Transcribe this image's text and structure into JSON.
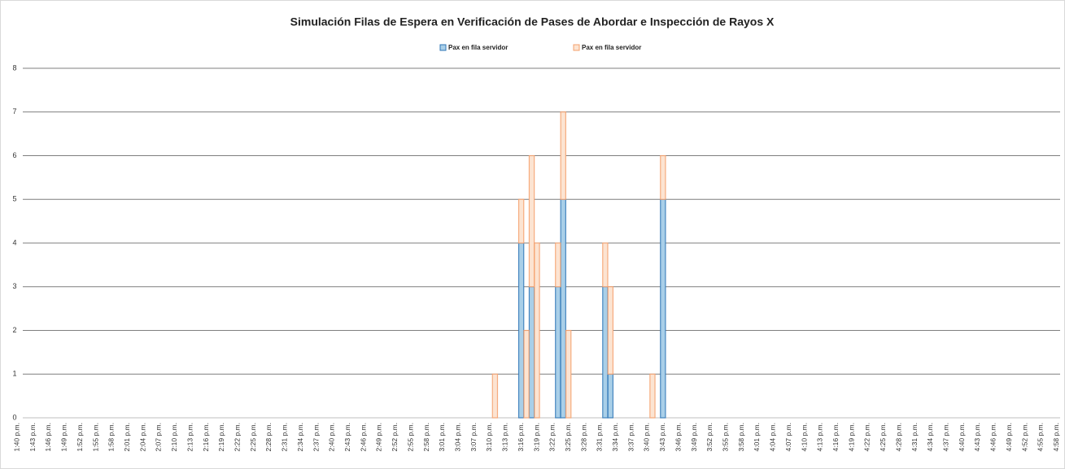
{
  "chart_data": {
    "type": "stacked_bar",
    "title": "Simulación Filas de Espera en Verificación de Pases de Abordar e Inspección de Rayos X",
    "categories": [
      "1:40 p.m.",
      null,
      null,
      "1:43 p.m.",
      null,
      null,
      "1:46 p.m.",
      null,
      null,
      "1:49 p.m.",
      null,
      null,
      "1:52 p.m.",
      null,
      null,
      "1:55 p.m.",
      null,
      null,
      "1:58 p.m.",
      null,
      null,
      "2:01 p.m.",
      null,
      null,
      "2:04 p.m.",
      null,
      null,
      "2:07 p.m.",
      null,
      null,
      "2:10 p.m.",
      null,
      null,
      "2:13 p.m.",
      null,
      null,
      "2:16 p.m.",
      null,
      null,
      "2:19 p.m.",
      null,
      null,
      "2:22 p.m.",
      null,
      null,
      "2:25 p.m.",
      null,
      null,
      "2:28 p.m.",
      null,
      null,
      "2:31 p.m.",
      null,
      null,
      "2:34 p.m.",
      null,
      null,
      "2:37 p.m.",
      null,
      null,
      "2:40 p.m.",
      null,
      null,
      "2:43 p.m.",
      null,
      null,
      "2:46 p.m.",
      null,
      null,
      "2:49 p.m.",
      null,
      null,
      "2:52 p.m.",
      null,
      null,
      "2:55 p.m.",
      null,
      null,
      "2:58 p.m.",
      null,
      null,
      "3:01 p.m.",
      null,
      null,
      "3:04 p.m.",
      null,
      null,
      "3:07 p.m.",
      null,
      null,
      "3:10 p.m.",
      null,
      null,
      "3:13 p.m.",
      null,
      null,
      "3:16 p.m.",
      null,
      null,
      "3:19 p.m.",
      null,
      null,
      "3:22 p.m.",
      null,
      null,
      "3:25 p.m.",
      null,
      null,
      "3:28 p.m.",
      null,
      null,
      "3:31 p.m.",
      null,
      null,
      "3:34 p.m.",
      null,
      null,
      "3:37 p.m.",
      null,
      null,
      "3:40 p.m.",
      null,
      null,
      "3:43 p.m.",
      null,
      null,
      "3:46 p.m.",
      null,
      null,
      "3:49 p.m.",
      null,
      null,
      "3:52 p.m.",
      null,
      null,
      "3:55 p.m.",
      null,
      null,
      "3:58 p.m.",
      null,
      null,
      "4:01 p.m.",
      null,
      null,
      "4:04 p.m.",
      null,
      null,
      "4:07 p.m.",
      null,
      null,
      "4:10 p.m.",
      null,
      null,
      "4:13 p.m.",
      null,
      null,
      "4:16 p.m.",
      null,
      null,
      "4:19 p.m.",
      null,
      null,
      "4:22 p.m.",
      null,
      null,
      "4:25 p.m.",
      null,
      null,
      "4:28 p.m.",
      null,
      null,
      "4:31 p.m.",
      null,
      null,
      "4:34 p.m.",
      null,
      null,
      "4:37 p.m.",
      null,
      null,
      "4:40 p.m.",
      null,
      null,
      "4:43 p.m.",
      null,
      null,
      "4:46 p.m.",
      null,
      null,
      "4:49 p.m.",
      null,
      null,
      "4:52 p.m.",
      null,
      null,
      "4:55 p.m.",
      null,
      null,
      "4:58 p.m."
    ],
    "series": [
      {
        "name": "Pax en fila servidor",
        "color": "#a9cfe8",
        "stroke": "#2e75b6",
        "values": [
          0,
          0,
          0,
          0,
          0,
          0,
          0,
          0,
          0,
          0,
          0,
          0,
          0,
          0,
          0,
          0,
          0,
          0,
          0,
          0,
          0,
          0,
          0,
          0,
          0,
          0,
          0,
          0,
          0,
          0,
          0,
          0,
          0,
          0,
          0,
          0,
          0,
          0,
          0,
          0,
          0,
          0,
          0,
          0,
          0,
          0,
          0,
          0,
          0,
          0,
          0,
          0,
          0,
          0,
          0,
          0,
          0,
          0,
          0,
          0,
          0,
          0,
          0,
          0,
          0,
          0,
          0,
          0,
          0,
          0,
          0,
          0,
          0,
          0,
          0,
          0,
          0,
          0,
          0,
          0,
          0,
          0,
          0,
          0,
          0,
          0,
          0,
          0,
          0,
          0,
          0,
          0,
          0,
          0,
          0,
          0,
          4,
          0,
          3,
          0,
          0,
          0,
          0,
          3,
          5,
          0,
          0,
          0,
          0,
          0,
          0,
          0,
          3,
          1,
          0,
          0,
          0,
          0,
          0,
          0,
          0,
          0,
          0,
          5,
          0,
          0,
          0,
          0,
          0,
          0,
          0,
          0,
          0,
          0,
          0,
          0,
          0,
          0,
          0,
          0,
          0,
          0,
          0,
          0,
          0,
          0,
          0,
          0,
          0,
          0,
          0,
          0,
          0,
          0,
          0,
          0,
          0,
          0,
          0,
          0,
          0,
          0,
          0,
          0,
          0,
          0,
          0,
          0,
          0,
          0,
          0,
          0,
          0,
          0,
          0,
          0,
          0,
          0,
          0,
          0,
          0,
          0,
          0,
          0,
          0,
          0,
          0,
          0,
          0,
          0,
          0,
          0,
          0,
          0,
          0,
          0,
          0,
          0,
          0
        ]
      },
      {
        "name": "Pax en fila servidor",
        "color": "#fce4d2",
        "stroke": "#f4a06c",
        "values": [
          0,
          0,
          0,
          0,
          0,
          0,
          0,
          0,
          0,
          0,
          0,
          0,
          0,
          0,
          0,
          0,
          0,
          0,
          0,
          0,
          0,
          0,
          0,
          0,
          0,
          0,
          0,
          0,
          0,
          0,
          0,
          0,
          0,
          0,
          0,
          0,
          0,
          0,
          0,
          0,
          0,
          0,
          0,
          0,
          0,
          0,
          0,
          0,
          0,
          0,
          0,
          0,
          0,
          0,
          0,
          0,
          0,
          0,
          0,
          0,
          0,
          0,
          0,
          0,
          0,
          0,
          0,
          0,
          0,
          0,
          0,
          0,
          0,
          0,
          0,
          0,
          0,
          0,
          0,
          0,
          0,
          0,
          0,
          0,
          0,
          0,
          0,
          0,
          0,
          0,
          0,
          1,
          0,
          0,
          0,
          0,
          1,
          2,
          3,
          4,
          0,
          0,
          0,
          1,
          2,
          2,
          0,
          0,
          0,
          0,
          0,
          0,
          1,
          2,
          0,
          0,
          0,
          0,
          0,
          0,
          0,
          1,
          0,
          1,
          0,
          0,
          0,
          0,
          0,
          0,
          0,
          0,
          0,
          0,
          0,
          0,
          0,
          0,
          0,
          0,
          0,
          0,
          0,
          0,
          0,
          0,
          0,
          0,
          0,
          0,
          0,
          0,
          0,
          0,
          0,
          0,
          0,
          0,
          0,
          0,
          0,
          0,
          0,
          0,
          0,
          0,
          0,
          0,
          0,
          0,
          0,
          0,
          0,
          0,
          0,
          0,
          0,
          0,
          0,
          0,
          0,
          0,
          0,
          0,
          0,
          0,
          0,
          0,
          0,
          0,
          0,
          0,
          0,
          0,
          0,
          0,
          0,
          0,
          0
        ]
      }
    ],
    "ylim": [
      0,
      8
    ],
    "yticks": [
      0,
      1,
      2,
      3,
      4,
      5,
      6,
      7,
      8
    ],
    "grid": true,
    "legend": "top"
  }
}
